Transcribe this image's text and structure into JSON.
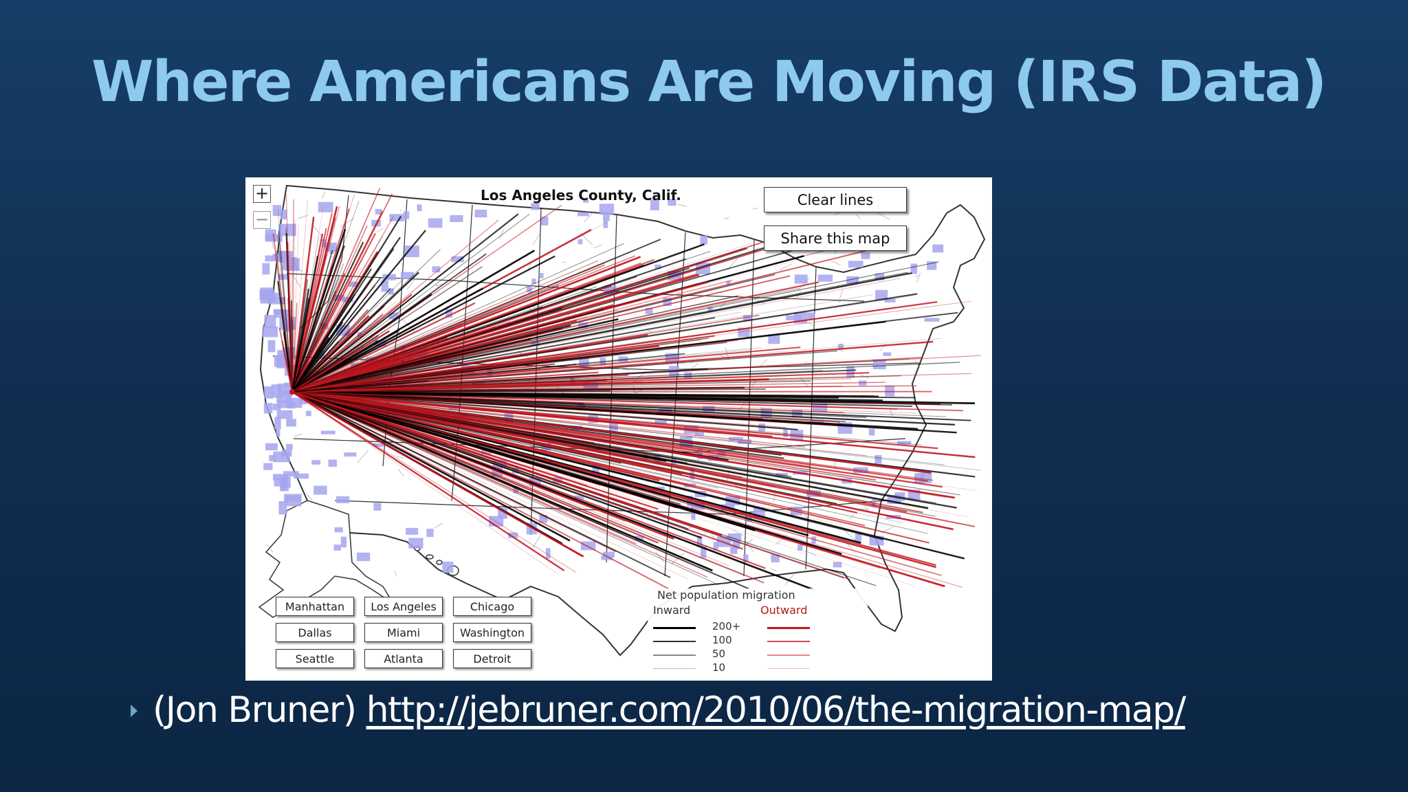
{
  "slide": {
    "title": "Where Americans Are Moving (IRS Data)",
    "caption_author": "(Jon Bruner)",
    "caption_url": "http://jebruner.com/2010/06/the-migration-map/"
  },
  "map": {
    "title": "Los Angeles County, Calif.",
    "origin": "Los Angeles",
    "zoom_in_label": "+",
    "zoom_out_label": "−",
    "buttons": {
      "clear_label": "Clear lines",
      "share_label": "Share this map"
    },
    "cities": [
      "Manhattan",
      "Los Angeles",
      "Chicago",
      "Dallas",
      "Miami",
      "Washington",
      "Seattle",
      "Atlanta",
      "Detroit"
    ],
    "legend": {
      "title": "Net population migration",
      "inward_label": "Inward",
      "outward_label": "Outward",
      "levels": [
        "200+",
        "100",
        "50",
        "10"
      ]
    },
    "colors": {
      "inward": "#000000",
      "outward": "#c0161e",
      "county_highlight": "#a6a6ef",
      "land": "#ffffff",
      "border": "#333333"
    }
  }
}
